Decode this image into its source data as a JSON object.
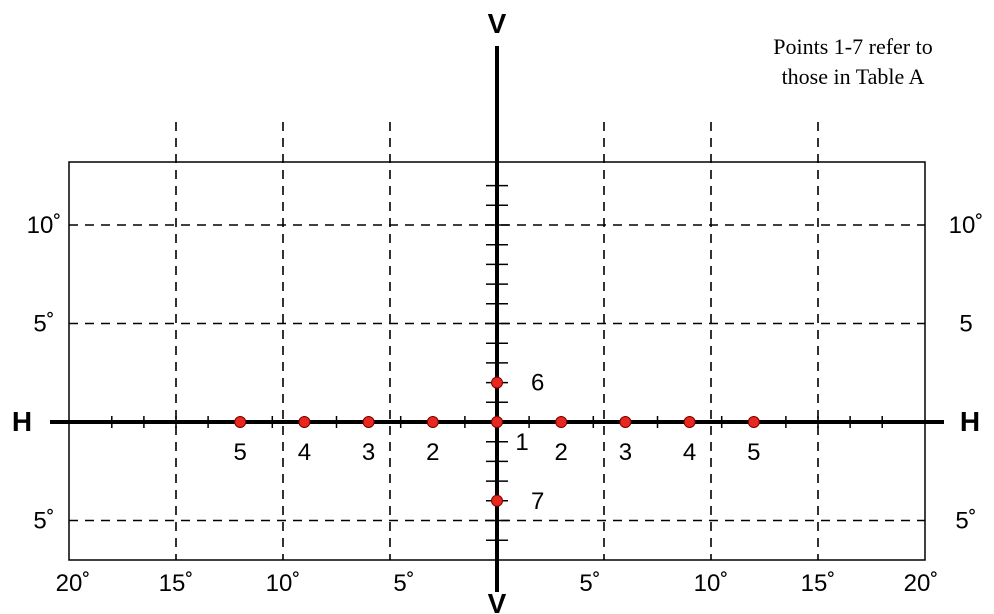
{
  "diagram": {
    "axis_labels": {
      "vertical_top": "V",
      "vertical_bottom": "V",
      "horizontal_left": "H",
      "horizontal_right": "H"
    },
    "note": {
      "line1": "Points 1-7 refer to",
      "line2": "those in Table A"
    },
    "colors": {
      "grid": "#000000",
      "axis": "#000000",
      "point": "#e8281e"
    }
  },
  "chart_data": {
    "type": "scatter",
    "xlim": [
      -20,
      20
    ],
    "ylim": [
      -6.5,
      12.5
    ],
    "grid": "dashed",
    "vertical_gridlines": [
      -15,
      -10,
      -5,
      5,
      10,
      15
    ],
    "horizontal_gridlines": [
      10,
      5,
      -5
    ],
    "points": [
      {
        "label": "5",
        "x": -12,
        "y": 0
      },
      {
        "label": "4",
        "x": -9,
        "y": 0
      },
      {
        "label": "3",
        "x": -6,
        "y": 0
      },
      {
        "label": "2",
        "x": -3,
        "y": 0
      },
      {
        "label": "1",
        "x": 0,
        "y": 0
      },
      {
        "label": "2",
        "x": 3,
        "y": 0
      },
      {
        "label": "3",
        "x": 6,
        "y": 0
      },
      {
        "label": "4",
        "x": 9,
        "y": 0
      },
      {
        "label": "5",
        "x": 12,
        "y": 0
      },
      {
        "label": "6",
        "x": 0,
        "y": 2
      },
      {
        "label": "7",
        "x": 0,
        "y": -4
      }
    ],
    "y_tick_labels": {
      "left": [
        {
          "value": 10,
          "text": "10˚"
        },
        {
          "value": 5,
          "text": "5˚"
        },
        {
          "value": -5,
          "text": "5˚"
        }
      ],
      "right": [
        {
          "value": 10,
          "text": "10˚"
        },
        {
          "value": 5,
          "text": "5"
        },
        {
          "value": -5,
          "text": "5˚"
        }
      ]
    },
    "x_tick_labels": [
      {
        "value": -20,
        "text": "20˚"
      },
      {
        "value": -15,
        "text": "15˚"
      },
      {
        "value": -10,
        "text": "10˚"
      },
      {
        "value": -5,
        "text": "5˚"
      },
      {
        "value": 5,
        "text": "5˚"
      },
      {
        "value": 10,
        "text": "10˚"
      },
      {
        "value": 15,
        "text": "15˚"
      },
      {
        "value": 20,
        "text": "20˚"
      }
    ]
  }
}
